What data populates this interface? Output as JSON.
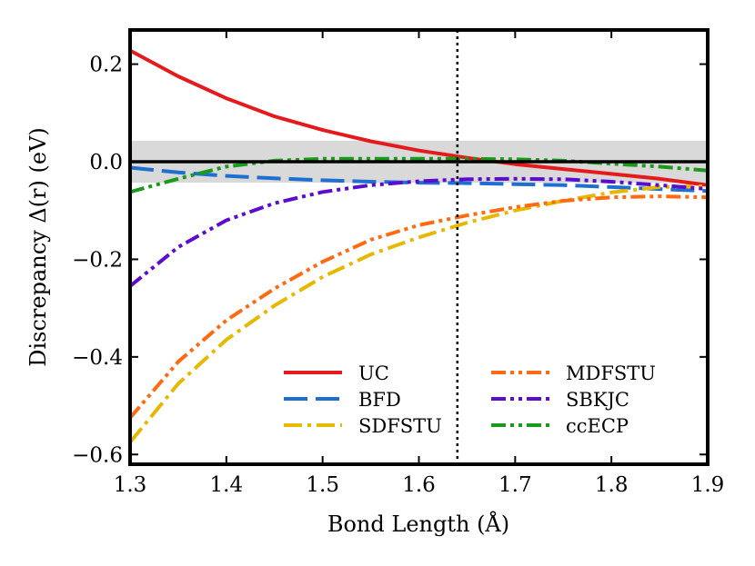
{
  "chart_data": {
    "type": "line",
    "xlabel": "Bond Length (Å)",
    "ylabel": "Discrepancy Δ(r) (eV)",
    "xlim": [
      1.3,
      1.9
    ],
    "ylim": [
      -0.62,
      0.27
    ],
    "xticks": [
      1.3,
      1.4,
      1.5,
      1.6,
      1.7,
      1.8,
      1.9
    ],
    "xtick_labels": [
      "1.3",
      "1.4",
      "1.5",
      "1.6",
      "1.7",
      "1.8",
      "1.9"
    ],
    "yticks": [
      0.2,
      0.0,
      -0.2,
      -0.4,
      -0.6
    ],
    "ytick_labels": [
      "0.2",
      "0.0",
      "−0.2",
      "−0.4",
      "−0.6"
    ],
    "band": [
      -0.043,
      0.043
    ],
    "band_color": "#d9d9d9",
    "zero_line": 0.0,
    "vertical_line": 1.64,
    "legend_position": "lower-right",
    "legend_columns": 2,
    "x": [
      1.3,
      1.35,
      1.4,
      1.45,
      1.5,
      1.55,
      1.6,
      1.65,
      1.7,
      1.75,
      1.8,
      1.85,
      1.9
    ],
    "series": [
      {
        "name": "UC",
        "color": "#e41a1c",
        "dash": "solid",
        "values": [
          0.228,
          0.175,
          0.13,
          0.093,
          0.065,
          0.042,
          0.023,
          0.008,
          -0.005,
          -0.015,
          -0.025,
          -0.035,
          -0.048
        ]
      },
      {
        "name": "BFD",
        "color": "#1f6fd1",
        "dash": "dash",
        "values": [
          -0.012,
          -0.022,
          -0.029,
          -0.034,
          -0.038,
          -0.041,
          -0.043,
          -0.044,
          -0.046,
          -0.048,
          -0.052,
          -0.056,
          -0.06
        ]
      },
      {
        "name": "SDFSTU",
        "color": "#e6b800",
        "dash": "dashdot",
        "values": [
          -0.575,
          -0.455,
          -0.365,
          -0.295,
          -0.236,
          -0.19,
          -0.155,
          -0.125,
          -0.1,
          -0.08,
          -0.063,
          -0.052,
          -0.05
        ]
      },
      {
        "name": "MDFSTU",
        "color": "#ff6a13",
        "dash": "dashdotdot",
        "values": [
          -0.525,
          -0.41,
          -0.325,
          -0.26,
          -0.205,
          -0.16,
          -0.13,
          -0.11,
          -0.093,
          -0.08,
          -0.073,
          -0.071,
          -0.073
        ]
      },
      {
        "name": "SBKJC",
        "color": "#5b0ccf",
        "dash": "dashdotdot",
        "values": [
          -0.255,
          -0.175,
          -0.12,
          -0.085,
          -0.062,
          -0.048,
          -0.04,
          -0.036,
          -0.035,
          -0.036,
          -0.041,
          -0.048,
          -0.056
        ]
      },
      {
        "name": "ccECP",
        "color": "#1a9a1a",
        "dash": "dashdotdot",
        "values": [
          -0.062,
          -0.035,
          -0.01,
          0.002,
          0.006,
          0.006,
          0.006,
          0.006,
          0.005,
          0.002,
          -0.004,
          -0.01,
          -0.018
        ]
      }
    ]
  }
}
